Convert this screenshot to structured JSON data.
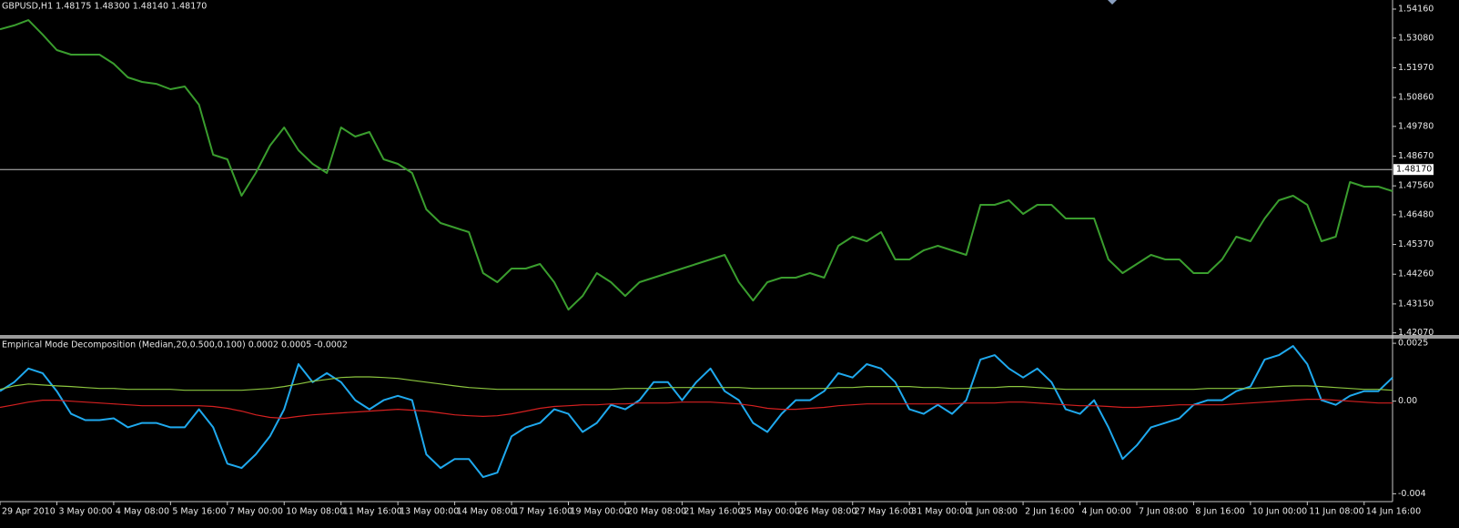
{
  "chart_data": [
    {
      "type": "line",
      "title": "GBPUSD,H1  1.48175 1.48300 1.48140 1.48170",
      "series": [
        {
          "color": "#3a9d2e",
          "values": [
            1.5341,
            1.5355,
            1.5375,
            1.5321,
            1.5263,
            1.5246,
            1.5246,
            1.5246,
            1.5212,
            1.5161,
            1.5144,
            1.5137,
            1.5117,
            1.5127,
            1.5059,
            1.4872,
            1.4855,
            1.4719,
            1.4804,
            1.4906,
            1.4974,
            1.4889,
            1.4838,
            1.4804,
            1.4974,
            1.494,
            1.4957,
            1.4855,
            1.4838,
            1.4804,
            1.4668,
            1.4617,
            1.46,
            1.4583,
            1.443,
            1.4396,
            1.4447,
            1.4447,
            1.4464,
            1.4396,
            1.4294,
            1.4345,
            1.443,
            1.4396,
            1.4345,
            1.4396,
            1.4413,
            1.443,
            1.4447,
            1.4464,
            1.4481,
            1.4498,
            1.4396,
            1.4328,
            1.4396,
            1.4413,
            1.4413,
            1.443,
            1.4413,
            1.4532,
            1.4566,
            1.4549,
            1.4583,
            1.4481,
            1.4481,
            1.4515,
            1.4532,
            1.4515,
            1.4498,
            1.4685,
            1.4685,
            1.4702,
            1.4651,
            1.4685,
            1.4685,
            1.4634,
            1.4634,
            1.4634,
            1.4481,
            1.443,
            1.4464,
            1.4498,
            1.4481,
            1.4481,
            1.443,
            1.443,
            1.4481,
            1.4566,
            1.4549,
            1.4634,
            1.4702,
            1.4719,
            1.4685,
            1.4549,
            1.4566,
            1.477,
            1.4753,
            1.4753,
            1.4736
          ]
        }
      ],
      "ylim": [
        1.4199,
        1.545
      ],
      "yticks": [
        {
          "value": 1.5416,
          "label": "1.54160"
        },
        {
          "value": 1.5308,
          "label": "1.53080"
        },
        {
          "value": 1.5197,
          "label": "1.51970"
        },
        {
          "value": 1.5086,
          "label": "1.50860"
        },
        {
          "value": 1.4978,
          "label": "1.49780"
        },
        {
          "value": 1.4867,
          "label": "1.48670"
        },
        {
          "value": 1.4756,
          "label": "1.47560"
        },
        {
          "value": 1.4648,
          "label": "1.46480"
        },
        {
          "value": 1.4537,
          "label": "1.45370"
        },
        {
          "value": 1.4426,
          "label": "1.44260"
        },
        {
          "value": 1.4315,
          "label": "1.43150"
        },
        {
          "value": 1.4207,
          "label": "1.42070"
        }
      ],
      "hline": {
        "value": 1.4817,
        "label": "1.48170"
      }
    },
    {
      "type": "line",
      "title": "Empirical Mode Decomposition (Median,20,0.500,0.100) 0.0002 0.0005 -0.0002",
      "series": [
        {
          "color": "#1fa9ee",
          "values": [
            0.00043,
            0.00082,
            0.00141,
            0.00121,
            0.00043,
            -0.00055,
            -0.00082,
            -0.00082,
            -0.00074,
            -0.00113,
            -0.00094,
            -0.00094,
            -0.00113,
            -0.00113,
            -0.00035,
            -0.00113,
            -0.0027,
            -0.00289,
            -0.0023,
            -0.00152,
            -0.00035,
            0.0016,
            0.00082,
            0.00121,
            0.00082,
            4e-05,
            -0.00035,
            4e-05,
            0.00023,
            4e-05,
            -0.0023,
            -0.00289,
            -0.0025,
            -0.0025,
            -0.00328,
            -0.00309,
            -0.00152,
            -0.00113,
            -0.00094,
            -0.00035,
            -0.00055,
            -0.00133,
            -0.00094,
            -0.00016,
            -0.00035,
            4e-05,
            0.00082,
            0.00082,
            4e-05,
            0.00082,
            0.00141,
            0.00043,
            4e-05,
            -0.00094,
            -0.00133,
            -0.00055,
            4e-05,
            4e-05,
            0.00043,
            0.00121,
            0.00102,
            0.0016,
            0.00141,
            0.00082,
            -0.00035,
            -0.00055,
            -0.00016,
            -0.00055,
            4e-05,
            0.0018,
            0.00199,
            0.00141,
            0.00102,
            0.00141,
            0.00082,
            -0.00035,
            -0.00055,
            4e-05,
            -0.00113,
            -0.0025,
            -0.00191,
            -0.00113,
            -0.00094,
            -0.00074,
            -0.00016,
            4e-05,
            4e-05,
            0.00043,
            0.00063,
            0.0018,
            0.00199,
            0.00238,
            0.0016,
            4e-05,
            -0.00016,
            0.00023,
            0.00043,
            0.00043,
            0.00102
          ]
        },
        {
          "color": "#8cc63f",
          "values": [
            0.00051,
            0.00066,
            0.00074,
            0.0007,
            0.00066,
            0.00063,
            0.00059,
            0.00055,
            0.00055,
            0.00051,
            0.00051,
            0.00051,
            0.00051,
            0.00047,
            0.00047,
            0.00047,
            0.00047,
            0.00047,
            0.00051,
            0.00055,
            0.00063,
            0.00074,
            0.00086,
            0.00094,
            0.00102,
            0.00105,
            0.00105,
            0.00102,
            0.00098,
            0.0009,
            0.00082,
            0.00074,
            0.00066,
            0.00059,
            0.00055,
            0.00051,
            0.00051,
            0.00051,
            0.00051,
            0.00051,
            0.00051,
            0.00051,
            0.00051,
            0.00051,
            0.00055,
            0.00055,
            0.00055,
            0.00059,
            0.00059,
            0.00059,
            0.00059,
            0.00059,
            0.00059,
            0.00055,
            0.00055,
            0.00055,
            0.00055,
            0.00055,
            0.00055,
            0.00059,
            0.00059,
            0.00063,
            0.00063,
            0.00063,
            0.00063,
            0.00059,
            0.00059,
            0.00055,
            0.00055,
            0.00059,
            0.00059,
            0.00063,
            0.00063,
            0.00059,
            0.00055,
            0.00051,
            0.00051,
            0.00051,
            0.00051,
            0.00051,
            0.00051,
            0.00051,
            0.00051,
            0.00051,
            0.00051,
            0.00055,
            0.00055,
            0.00055,
            0.00055,
            0.00059,
            0.00063,
            0.00066,
            0.00066,
            0.00063,
            0.00059,
            0.00055,
            0.00051,
            0.00051,
            0.00047
          ]
        },
        {
          "color": "#d42020",
          "values": [
            -0.00027,
            -0.00016,
            -4e-05,
            4e-05,
            4e-05,
            0,
            -4e-05,
            -8e-05,
            -0.00012,
            -0.00016,
            -0.0002,
            -0.0002,
            -0.0002,
            -0.0002,
            -0.0002,
            -0.00023,
            -0.00031,
            -0.00043,
            -0.00059,
            -0.0007,
            -0.00074,
            -0.00066,
            -0.00059,
            -0.00055,
            -0.00051,
            -0.00047,
            -0.00043,
            -0.00039,
            -0.00035,
            -0.00039,
            -0.00043,
            -0.00051,
            -0.00059,
            -0.00063,
            -0.00066,
            -0.00063,
            -0.00055,
            -0.00043,
            -0.00031,
            -0.00023,
            -0.0002,
            -0.00016,
            -0.00016,
            -0.00012,
            -0.00012,
            -8e-05,
            -8e-05,
            -8e-05,
            -4e-05,
            -4e-05,
            -4e-05,
            -8e-05,
            -0.00012,
            -0.0002,
            -0.00031,
            -0.00035,
            -0.00035,
            -0.00031,
            -0.00027,
            -0.0002,
            -0.00016,
            -0.00012,
            -0.00012,
            -0.00012,
            -0.00012,
            -0.00012,
            -0.00012,
            -0.00012,
            -8e-05,
            -8e-05,
            -8e-05,
            -4e-05,
            -4e-05,
            -8e-05,
            -0.00012,
            -0.00016,
            -0.0002,
            -0.0002,
            -0.00023,
            -0.00027,
            -0.00027,
            -0.00023,
            -0.0002,
            -0.00016,
            -0.00016,
            -0.00016,
            -0.00016,
            -0.00012,
            -8e-05,
            -4e-05,
            0,
            4e-05,
            8e-05,
            8e-05,
            4e-05,
            0,
            -4e-05,
            -8e-05,
            -8e-05
          ]
        }
      ],
      "ylim": [
        -0.0043,
        0.0027
      ],
      "yticks": [
        0.0025,
        {
          "value": 0,
          "label": "0.00"
        },
        -0.004
      ],
      "xticks": [
        {
          "value": 0,
          "label": "29 Apr 2010"
        },
        {
          "value": 4,
          "label": "3 May 00:00"
        },
        {
          "value": 8,
          "label": "4 May 08:00"
        },
        {
          "value": 12,
          "label": "5 May 16:00"
        },
        {
          "value": 16,
          "label": "7 May 00:00"
        },
        {
          "value": 20,
          "label": "10 May 08:00"
        },
        {
          "value": 24,
          "label": "11 May 16:00"
        },
        {
          "value": 28,
          "label": "13 May 00:00"
        },
        {
          "value": 32,
          "label": "14 May 08:00"
        },
        {
          "value": 36,
          "label": "17 May 16:00"
        },
        {
          "value": 40,
          "label": "19 May 00:00"
        },
        {
          "value": 44,
          "label": "20 May 08:00"
        },
        {
          "value": 48,
          "label": "21 May 16:00"
        },
        {
          "value": 52,
          "label": "25 May 00:00"
        },
        {
          "value": 56,
          "label": "26 May 08:00"
        },
        {
          "value": 60,
          "label": "27 May 16:00"
        },
        {
          "value": 64,
          "label": "31 May 00:00"
        },
        {
          "value": 68,
          "label": "1 Jun 08:00"
        },
        {
          "value": 72,
          "label": "2 Jun 16:00"
        },
        {
          "value": 76,
          "label": "4 Jun 00:00"
        },
        {
          "value": 80,
          "label": "7 Jun 08:00"
        },
        {
          "value": 84,
          "label": "8 Jun 16:00"
        },
        {
          "value": 88,
          "label": "10 Jun 00:00"
        },
        {
          "value": 92,
          "label": "11 Jun 08:00"
        },
        {
          "value": 96,
          "label": "14 Jun 16:00"
        }
      ]
    }
  ]
}
